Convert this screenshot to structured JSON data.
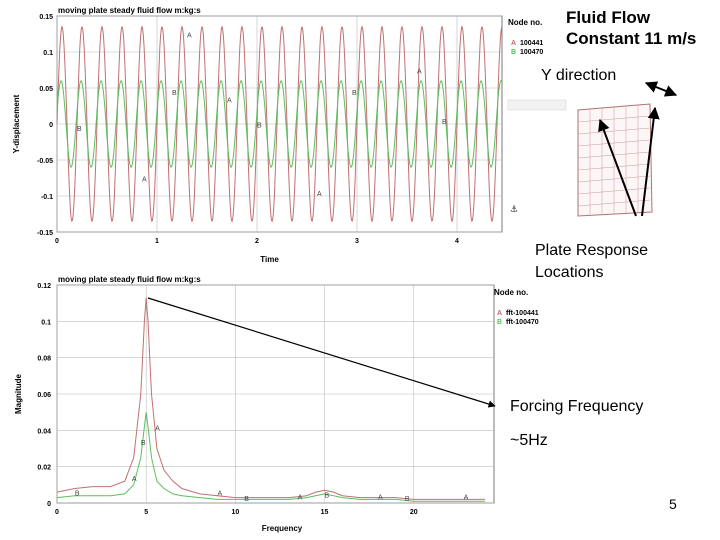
{
  "slide": {
    "title_line1": "Fluid Flow",
    "title_line2": "Constant 11 m/s",
    "direction_label": "Y direction",
    "locations_label_line1": "Plate Response",
    "locations_label_line2": "Locations",
    "forcing_label": "Forcing Frequency",
    "forcing_value": "~5Hz",
    "page_number": "5"
  },
  "chart_data": [
    {
      "type": "line",
      "title": "moving plate steady fluid flow m:kg:s",
      "xlabel": "Time",
      "ylabel": "Y-displacement",
      "xlim": [
        0,
        4.45
      ],
      "ylim": [
        -0.15,
        0.15
      ],
      "xticks": [
        "0",
        "1",
        "2",
        "3",
        "4"
      ],
      "yticks": [
        "-0.15",
        "-0.1",
        "-0.05",
        "0",
        "0.05",
        "0.1",
        "0.15"
      ],
      "legend_title": "Node no.",
      "series": [
        {
          "name": "100441",
          "marker": "A",
          "color": "#c07070",
          "amplitude": 0.135,
          "frequency_hz": 5.0
        },
        {
          "name": "100470",
          "marker": "B",
          "color": "#5cbf5c",
          "amplitude": 0.06,
          "frequency_hz": 5.0
        }
      ],
      "grid": true,
      "legend_position": "top-right"
    },
    {
      "type": "line",
      "title": "moving plate steady fluid flow m:kg:s",
      "xlabel": "Frequency",
      "ylabel": "Magnitude",
      "xlim": [
        0,
        24.5
      ],
      "ylim": [
        0,
        0.12
      ],
      "xticks": [
        "0",
        "5",
        "10",
        "15",
        "20"
      ],
      "yticks": [
        "0",
        "0.02",
        "0.04",
        "0.06",
        "0.08",
        "0.1",
        "0.12"
      ],
      "legend_title": "Node no.",
      "series": [
        {
          "name": "fft-100441",
          "marker": "A",
          "color": "#c07070",
          "x": [
            0,
            1,
            2,
            3,
            3.8,
            4.3,
            4.7,
            4.9,
            5.0,
            5.1,
            5.3,
            5.6,
            6.0,
            6.5,
            7,
            8,
            9,
            10,
            11,
            12,
            13,
            14,
            14.5,
            15,
            15.5,
            16,
            17,
            18,
            19,
            20,
            21,
            22,
            23,
            24
          ],
          "values": [
            0.006,
            0.008,
            0.009,
            0.009,
            0.012,
            0.025,
            0.06,
            0.1,
            0.113,
            0.1,
            0.06,
            0.03,
            0.018,
            0.012,
            0.008,
            0.005,
            0.004,
            0.003,
            0.003,
            0.003,
            0.003,
            0.004,
            0.006,
            0.007,
            0.006,
            0.004,
            0.003,
            0.003,
            0.003,
            0.002,
            0.002,
            0.002,
            0.002,
            0.002
          ]
        },
        {
          "name": "fft-100470",
          "marker": "B",
          "color": "#5cbf5c",
          "x": [
            0,
            1,
            2,
            3,
            3.8,
            4.3,
            4.7,
            4.9,
            5.0,
            5.1,
            5.3,
            5.6,
            6.0,
            6.5,
            7,
            8,
            9,
            10,
            11,
            12,
            13,
            14,
            14.5,
            15,
            15.5,
            16,
            17,
            18,
            19,
            20,
            21,
            22,
            23,
            24
          ],
          "values": [
            0.003,
            0.004,
            0.004,
            0.004,
            0.005,
            0.01,
            0.025,
            0.042,
            0.05,
            0.042,
            0.025,
            0.012,
            0.008,
            0.005,
            0.004,
            0.003,
            0.002,
            0.002,
            0.002,
            0.002,
            0.002,
            0.003,
            0.004,
            0.005,
            0.004,
            0.003,
            0.002,
            0.002,
            0.002,
            0.001,
            0.001,
            0.001,
            0.001,
            0.001
          ]
        }
      ],
      "grid": true,
      "legend_position": "top-right"
    }
  ]
}
